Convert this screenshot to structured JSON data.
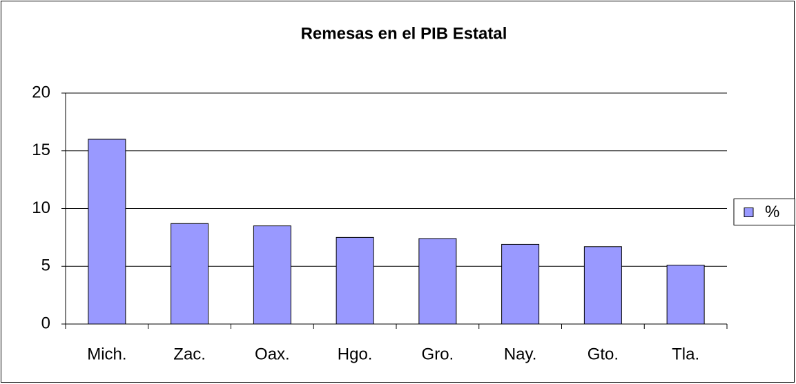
{
  "chart_data": {
    "type": "bar",
    "title": "Remesas en el PIB Estatal",
    "categories": [
      "Mich.",
      "Zac.",
      "Oax.",
      "Hgo.",
      "Gro.",
      "Nay.",
      "Gto.",
      "Tla."
    ],
    "series": [
      {
        "name": "%",
        "color": "#9999ff",
        "values": [
          16.0,
          8.7,
          8.5,
          7.5,
          7.4,
          6.9,
          6.7,
          5.1
        ]
      }
    ],
    "ylim": [
      0,
      20
    ],
    "yticks": [
      0,
      5,
      10,
      15,
      20
    ],
    "grid": true,
    "legend": "right"
  }
}
